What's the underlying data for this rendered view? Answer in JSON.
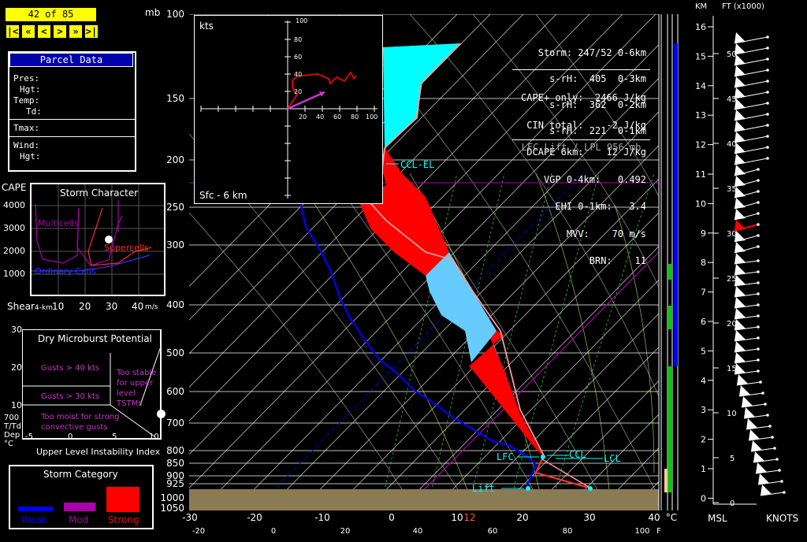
{
  "nav": {
    "frame": "42 of 85",
    "buttons": [
      "|<",
      "«",
      "<",
      ">",
      "»",
      ">|"
    ]
  },
  "parcel": {
    "title": "Parcel Data",
    "rows1": [
      "Pres:",
      "Hgt:",
      "Temp:",
      "Td:"
    ],
    "rows2": [
      "Tmax:"
    ],
    "rows3": [
      "Wind:",
      "Hgt:"
    ]
  },
  "storm_char": {
    "title": "Storm Character",
    "cape_label": "CAPE",
    "y_ticks": [
      "4000",
      "3000",
      "2000",
      "1000"
    ],
    "x_ticks": [
      "10",
      "20",
      "30",
      "40"
    ],
    "x_label": "Shear",
    "x_label_sub": "4-km",
    "x_unit": "m/s",
    "regions": {
      "multicells": "Multicells",
      "supercells": "Supercells",
      "ordinary": "Ordinary Cells"
    }
  },
  "microburst": {
    "title": "Dry Microburst Potential",
    "y_ticks": [
      "30",
      "20",
      "10"
    ],
    "x_ticks": [
      "-5",
      "0",
      "5",
      "10"
    ],
    "y_label": [
      "700",
      "T/Td",
      "Dep",
      "°C"
    ],
    "labels": [
      "Gusts > 40 kts",
      "Gusts > 30 kts",
      "Too stable",
      "for upper",
      "level",
      "TSTMs",
      "Too moist for strong",
      "convective gusts"
    ],
    "x_caption": "Upper Level Instability Index"
  },
  "category": {
    "title": "Storm Category",
    "weak": "Weak",
    "mod": "Mod",
    "strong": "Strong",
    "colors": {
      "weak": "#0000ff",
      "mod": "#aa00aa",
      "strong": "#ff0000"
    }
  },
  "skewt": {
    "pressure_unit": "mb",
    "pressure_labels": [
      "100",
      "150",
      "200",
      "250",
      "300",
      "400",
      "500",
      "600",
      "700",
      "800",
      "850",
      "900",
      "925",
      "1000",
      "1050"
    ],
    "celsius_ticks": [
      "-30",
      "-20",
      "-10",
      "0",
      "10",
      "12",
      "20",
      "30",
      "40"
    ],
    "celsius_unit": "°C",
    "fahrenheit_ticks": [
      "-20",
      "0",
      "20",
      "40",
      "60",
      "80",
      "100"
    ],
    "fahrenheit_unit": "F",
    "levels": {
      "lfc": "LFC",
      "ccl": "CCL",
      "lcl": "LCL",
      "lift": "Lift",
      "ccl_el": "CCL-EL"
    }
  },
  "indices": {
    "storm": "Storm: 247/52 0-6km",
    "srh": [
      "s-rH:  405  0-3km",
      "s-rH:  362  0-2km",
      "s-rH:  221  0-1km"
    ],
    "cape": "CAPE+ only:  2466 J/kg",
    "cin": "CIN total:    -2 J/kg",
    "dcape": "DCAPE 6km:    12 J/kg",
    "vgp": "VGP 0-4km:   0.492",
    "ehi": "EHI 0-1km:   3.4",
    "mvv": "MVV:    70 m/s",
    "brn": "BRN:    11",
    "lift": "LFC Lift / LPL 956 mb"
  },
  "hodograph": {
    "unit": "kts",
    "ticks": [
      "20",
      "40",
      "60",
      "80",
      "100"
    ],
    "caption": "Sfc - 6 km"
  },
  "wind_profile": {
    "km_label": "KM",
    "ft_label": "FT (x1000)",
    "km_ticks": [
      "16",
      "15",
      "14",
      "13",
      "12",
      "11",
      "10",
      "9",
      "8",
      "7",
      "6",
      "5",
      "4",
      "3",
      "2",
      "1",
      "0"
    ],
    "ft_ticks": [
      "50",
      "45",
      "40",
      "35",
      "30",
      "25",
      "20",
      "15",
      "10",
      "5",
      "0"
    ],
    "msl": "MSL",
    "knots": "KNOTS"
  }
}
